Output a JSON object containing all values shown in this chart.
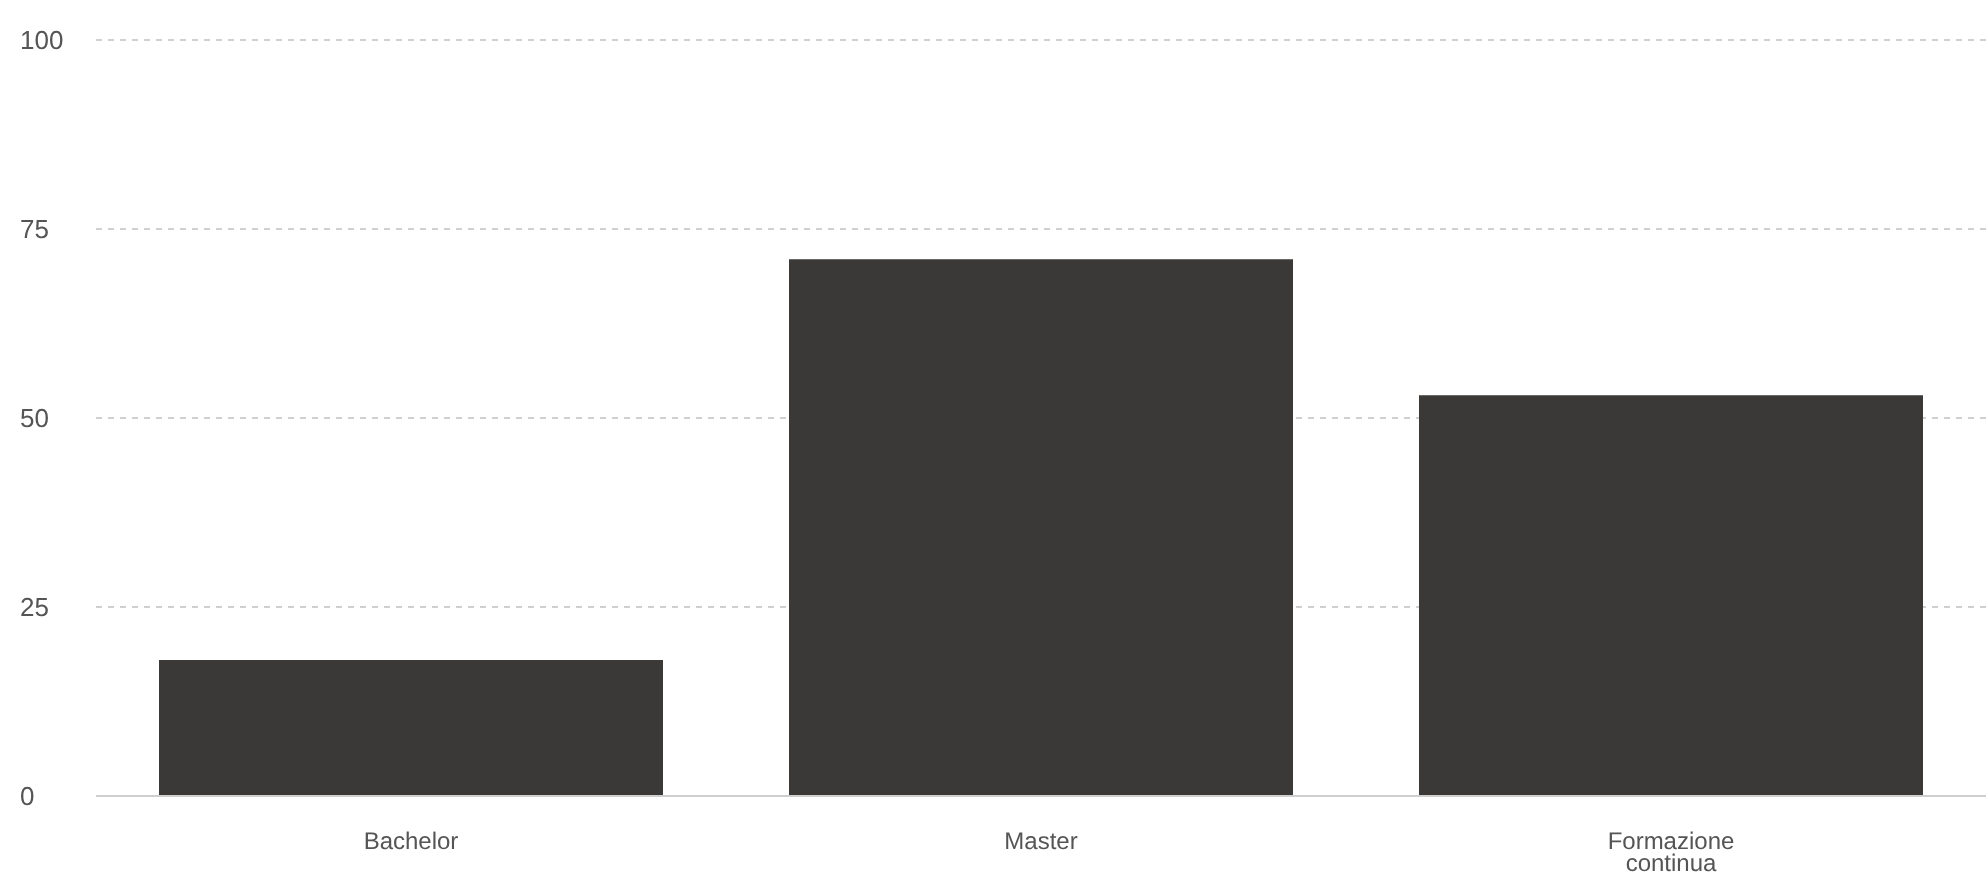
{
  "chart_data": {
    "type": "bar",
    "categories": [
      "Bachelor",
      "Master",
      "Formazione continua"
    ],
    "values": [
      18,
      71,
      53
    ],
    "color": "#3a3937",
    "ylim": [
      0,
      100
    ],
    "yticks": [
      0,
      25,
      50,
      75,
      100
    ],
    "grid": "y"
  }
}
